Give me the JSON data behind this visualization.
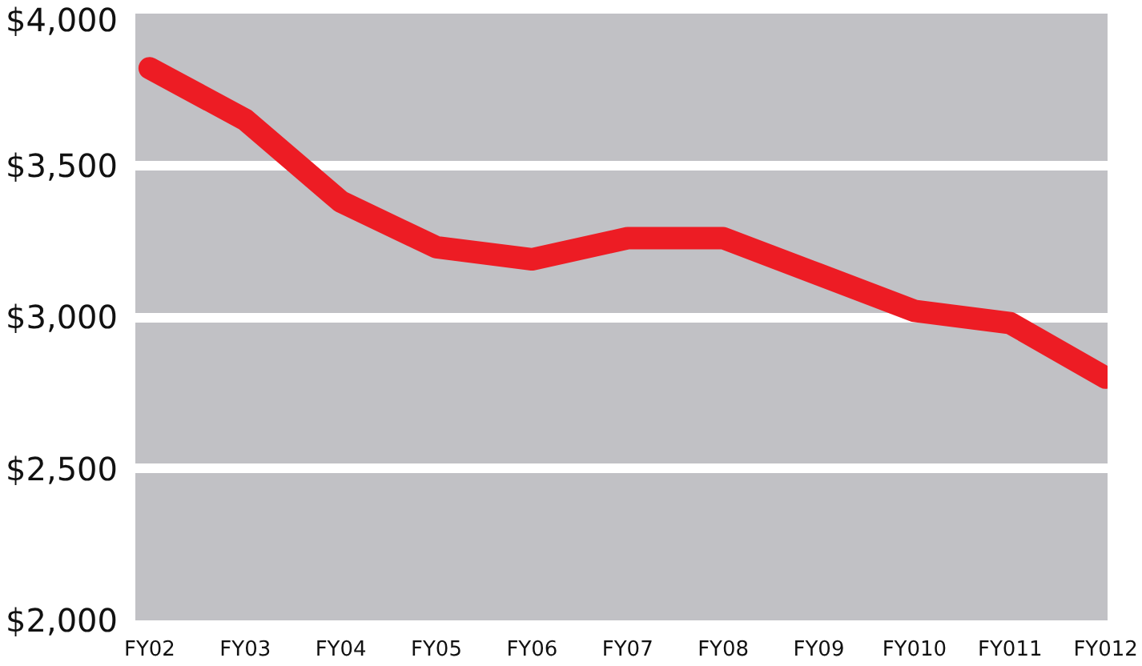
{
  "chart_data": {
    "type": "line",
    "categories": [
      "FY02",
      "FY03",
      "FY04",
      "FY05",
      "FY06",
      "FY07",
      "FY08",
      "FY09",
      "FY010",
      "FY011",
      "FY012"
    ],
    "series": [
      {
        "color": "#ed1c24",
        "values": [
          3820,
          3650,
          3380,
          3230,
          3190,
          3260,
          3260,
          3140,
          3020,
          2980,
          2800
        ]
      }
    ],
    "ylim": [
      2000,
      4000
    ],
    "yticks": [
      {
        "value": 2000,
        "label": "$2,000"
      },
      {
        "value": 2500,
        "label": "$2,500"
      },
      {
        "value": 3000,
        "label": "$3,000"
      },
      {
        "value": 3500,
        "label": "$3,500"
      },
      {
        "value": 4000,
        "label": "$4,000"
      }
    ],
    "grid": "y",
    "line_style": "solid"
  }
}
